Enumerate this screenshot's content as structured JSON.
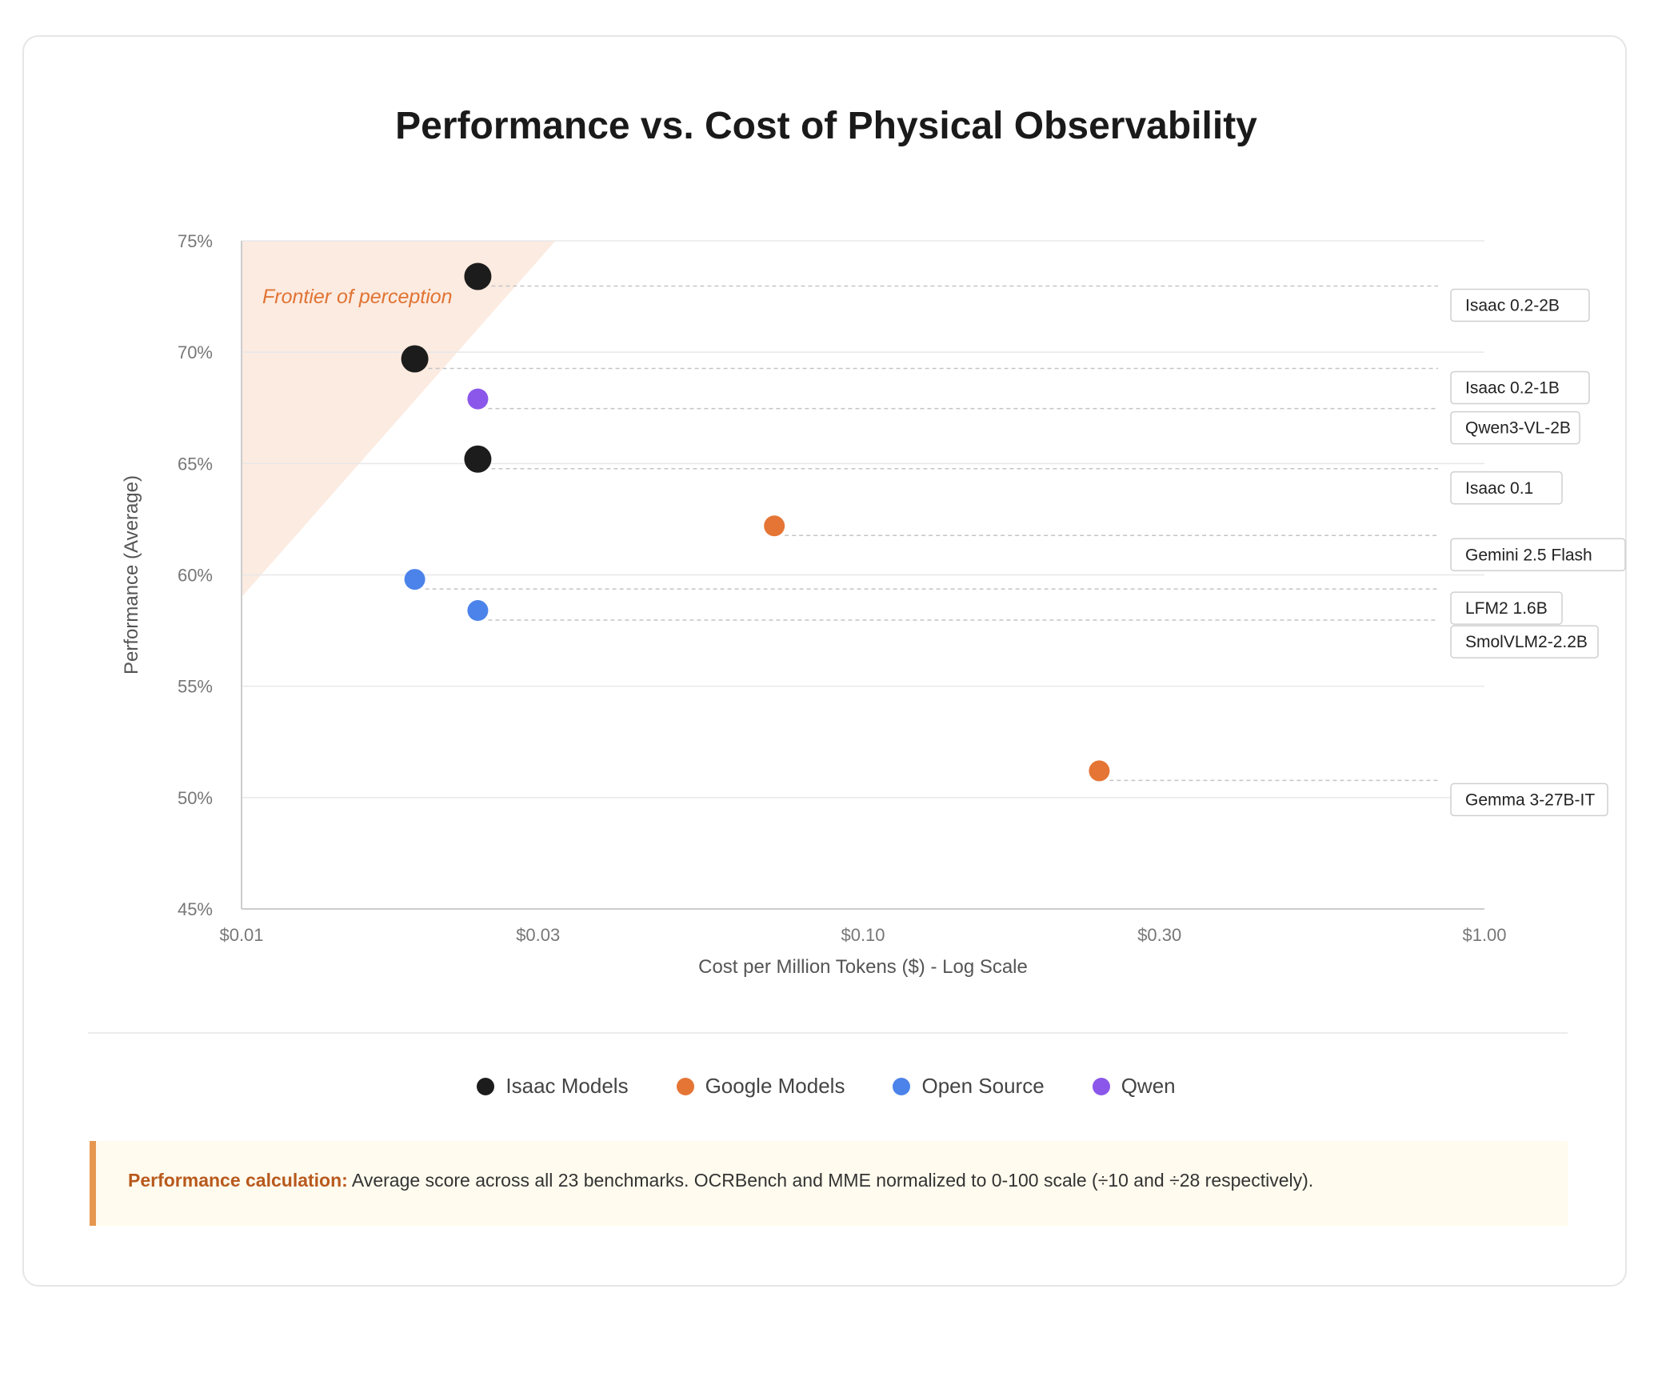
{
  "title": "Performance vs. Cost of Physical Observability",
  "colors": {
    "isaac": "#1c1c1c",
    "google": "#e57535",
    "open_source": "#4c83ea",
    "qwen": "#8a57ea",
    "frontier": "#fbe7dc",
    "frontier_text": "#e07434",
    "grid": "#e8e8e8",
    "axis": "#cccccc"
  },
  "chart_data": {
    "type": "scatter",
    "title": "Performance vs. Cost of Physical Observability",
    "xlabel": "Cost per Million Tokens ($) - Log Scale",
    "ylabel": "Performance (Average)",
    "xscale": "log",
    "xlim": [
      0.01,
      1.0
    ],
    "ylim": [
      45,
      75
    ],
    "xticks": [
      0.01,
      0.03,
      0.1,
      0.3,
      1.0
    ],
    "xtick_labels": [
      "$0.01",
      "$0.03",
      "$0.10",
      "$0.30",
      "$1.00"
    ],
    "yticks": [
      45,
      50,
      55,
      60,
      65,
      70,
      75
    ],
    "ytick_labels": [
      "45%",
      "50%",
      "55%",
      "60%",
      "65%",
      "70%",
      "75%"
    ],
    "grid": true,
    "legend_position": "bottom-center",
    "annotation": "Frontier of perception",
    "frontier_polygon": [
      [
        0.01,
        75
      ],
      [
        0.032,
        75
      ],
      [
        0.01,
        59
      ]
    ],
    "series": [
      {
        "name": "Isaac Models",
        "color_key": "isaac",
        "points": [
          {
            "label": "Isaac 0.2-2B",
            "x": 0.024,
            "y": 73.4,
            "size": "large"
          },
          {
            "label": "Isaac 0.2-1B",
            "x": 0.019,
            "y": 69.7,
            "size": "large"
          },
          {
            "label": "Isaac 0.1",
            "x": 0.024,
            "y": 65.2,
            "size": "large"
          }
        ]
      },
      {
        "name": "Google Models",
        "color_key": "google",
        "points": [
          {
            "label": "Gemini 2.5 Flash",
            "x": 0.072,
            "y": 62.2,
            "size": "small"
          },
          {
            "label": "Gemma 3-27B-IT",
            "x": 0.24,
            "y": 51.2,
            "size": "small"
          }
        ]
      },
      {
        "name": "Open Source",
        "color_key": "open_source",
        "points": [
          {
            "label": "LFM2 1.6B",
            "x": 0.019,
            "y": 59.8,
            "size": "small"
          },
          {
            "label": "SmolVLM2-2.2B",
            "x": 0.024,
            "y": 58.4,
            "size": "small"
          }
        ]
      },
      {
        "name": "Qwen",
        "color_key": "qwen",
        "points": [
          {
            "label": "Qwen3-VL-2B",
            "x": 0.024,
            "y": 67.9,
            "size": "small"
          }
        ]
      }
    ]
  },
  "legend": [
    {
      "label": "Isaac Models",
      "color_key": "isaac"
    },
    {
      "label": "Google Models",
      "color_key": "google"
    },
    {
      "label": "Open Source",
      "color_key": "open_source"
    },
    {
      "label": "Qwen",
      "color_key": "qwen"
    }
  ],
  "note": {
    "label": "Performance calculation:",
    "text": " Average score across all 23 benchmarks. OCRBench and MME normalized to 0-100 scale (÷10 and ÷28 respectively)."
  }
}
